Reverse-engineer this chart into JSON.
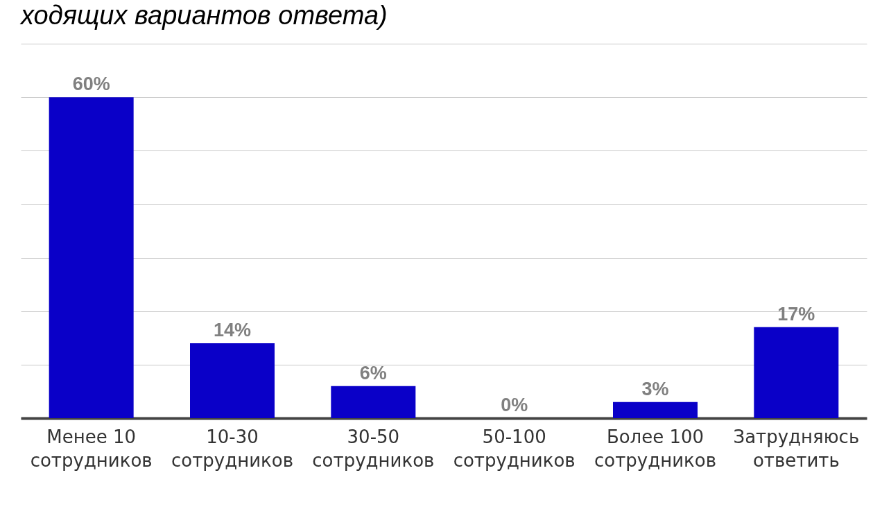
{
  "chart_data": {
    "type": "bar",
    "title": "ходящих вариантов ответа)",
    "categories": [
      "Менее 10 сотрудников",
      "10-30 сотрудников",
      "30-50 сотрудников",
      "50-100 сотрудников",
      "Более 100 сотрудников",
      "Затрудняюсь ответить"
    ],
    "values": [
      60,
      14,
      6,
      0,
      3,
      17
    ],
    "value_labels": [
      "60%",
      "14%",
      "6%",
      "0%",
      "3%",
      "17%"
    ],
    "color": "#0a00c8",
    "ylim": [
      0,
      70
    ],
    "yticks": [
      {
        "value": 0,
        "label": null
      },
      {
        "value": 10,
        "label": null
      },
      {
        "value": 20,
        "label": null
      },
      {
        "value": 30,
        "label": null
      },
      {
        "value": 40,
        "label": null
      },
      {
        "value": 50,
        "label": null
      },
      {
        "value": 60,
        "label": null
      },
      {
        "value": 70,
        "label": null
      }
    ],
    "grid": "y",
    "tick_labels": "x"
  }
}
